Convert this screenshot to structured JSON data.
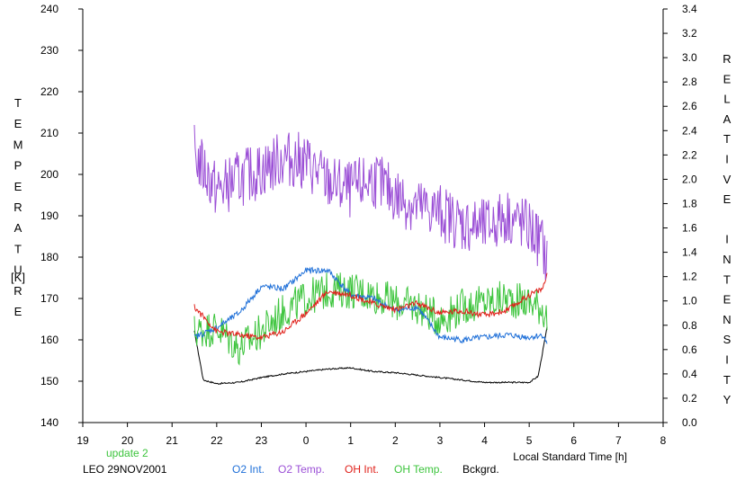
{
  "chart_data": {
    "type": "line",
    "title": "",
    "xlabel": "Local Standard Time [h]",
    "ylabel_left": "TEMPERATURE",
    "ylabel_left_unit": "[K]",
    "ylabel_right": "RELATIVE INTENSITY",
    "x_ticks": [
      19,
      20,
      21,
      22,
      23,
      0,
      1,
      2,
      3,
      4,
      5,
      6,
      7,
      8
    ],
    "x_tick_labels": [
      "19",
      "20",
      "21",
      "22",
      "23",
      "0",
      "1",
      "2",
      "3",
      "4",
      "5",
      "6",
      "7",
      "8"
    ],
    "xlim": [
      19,
      32
    ],
    "ylim_left": [
      140,
      240
    ],
    "y_left_ticks": [
      "140",
      "150",
      "160",
      "170",
      "180",
      "190",
      "200",
      "210",
      "220",
      "230",
      "240"
    ],
    "ylim_right": [
      0,
      3.4
    ],
    "y_right_ticks": [
      "0.0",
      "0.2",
      "0.4",
      "0.6",
      "0.8",
      "1.0",
      "1.2",
      "1.4",
      "1.6",
      "1.8",
      "2.0",
      "2.2",
      "2.4",
      "2.6",
      "2.8",
      "3.0",
      "3.2",
      "3.4"
    ],
    "grid": false,
    "annotations": {
      "update": "update 2",
      "station": "LEO 29NOV2001"
    },
    "legend_position": "bottom",
    "series": [
      {
        "name": "O2 Int.",
        "axis": "right",
        "color": "#1e6fd8",
        "x": [
          21.5,
          22.0,
          22.5,
          23.0,
          23.5,
          24.0,
          24.5,
          25.0,
          25.5,
          26.0,
          26.5,
          27.0,
          27.5,
          28.0,
          28.5,
          29.0,
          29.3,
          29.4
        ],
        "y": [
          0.7,
          0.78,
          0.9,
          1.12,
          1.1,
          1.25,
          1.25,
          1.05,
          1.02,
          0.92,
          0.95,
          0.7,
          0.68,
          0.7,
          0.72,
          0.7,
          0.72,
          0.65
        ]
      },
      {
        "name": "O2 Temp.",
        "axis": "left",
        "color": "#9b4fd6",
        "x": [
          21.5,
          22.0,
          22.5,
          23.0,
          23.5,
          24.0,
          24.5,
          25.0,
          25.5,
          26.0,
          26.5,
          27.0,
          27.5,
          28.0,
          28.5,
          29.0,
          29.3,
          29.4
        ],
        "y": [
          205,
          196,
          199,
          201,
          204,
          203,
          198,
          196,
          199,
          195,
          192,
          191,
          188,
          187,
          190,
          187,
          183,
          178
        ]
      },
      {
        "name": "OH Int.",
        "axis": "right",
        "color": "#e0201a",
        "x": [
          21.5,
          22.0,
          22.5,
          23.0,
          23.5,
          24.0,
          24.5,
          25.0,
          25.5,
          26.0,
          26.5,
          27.0,
          27.5,
          28.0,
          28.5,
          29.0,
          29.3,
          29.4
        ],
        "y": [
          0.95,
          0.75,
          0.72,
          0.7,
          0.75,
          0.9,
          1.08,
          1.05,
          0.98,
          0.93,
          0.98,
          0.9,
          0.92,
          0.88,
          0.92,
          1.05,
          1.1,
          1.22
        ]
      },
      {
        "name": "OH Temp.",
        "axis": "left",
        "color": "#3cc43c",
        "x": [
          21.5,
          22.0,
          22.5,
          23.0,
          23.5,
          24.0,
          24.5,
          25.0,
          25.5,
          26.0,
          26.5,
          27.0,
          27.5,
          28.0,
          28.5,
          29.0,
          29.3,
          29.4
        ],
        "y": [
          162,
          163,
          158,
          162,
          167,
          170,
          172,
          172,
          171,
          169,
          168,
          165,
          168,
          169,
          170,
          169,
          168,
          165
        ]
      },
      {
        "name": "Bckgrd.",
        "axis": "right",
        "color": "#000000",
        "x": [
          21.5,
          21.7,
          22.0,
          22.5,
          23.0,
          23.5,
          24.0,
          24.5,
          25.0,
          25.5,
          26.0,
          26.5,
          27.0,
          27.5,
          28.0,
          28.5,
          29.0,
          29.2,
          29.4
        ],
        "y": [
          0.75,
          0.35,
          0.32,
          0.33,
          0.37,
          0.4,
          0.42,
          0.44,
          0.45,
          0.42,
          0.41,
          0.39,
          0.37,
          0.35,
          0.33,
          0.33,
          0.33,
          0.38,
          0.78
        ]
      }
    ]
  }
}
